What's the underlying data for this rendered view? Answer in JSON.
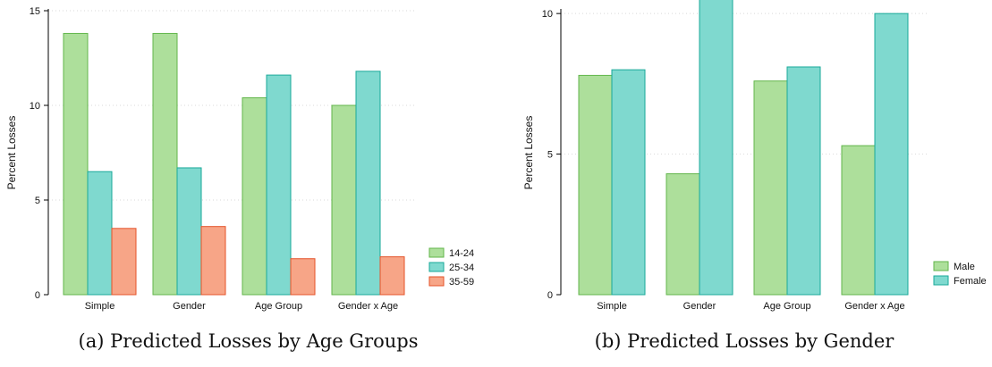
{
  "captions": {
    "a": "(a) Predicted Losses by Age Groups",
    "b": "(b) Predicted Losses by Gender"
  },
  "colors": {
    "green_fill": "#addf9b",
    "green_stroke": "#62b64b",
    "teal_fill": "#7fd9cf",
    "teal_stroke": "#1aa99a",
    "salmon_fill": "#f7a587",
    "salmon_stroke": "#e4532a",
    "grid": "#d9d9d9"
  },
  "chart_data": [
    {
      "type": "bar",
      "title": "",
      "xlabel": "",
      "ylabel": "Percent Losses",
      "ylim": [
        0,
        15
      ],
      "yticks": [
        0,
        5,
        10,
        15
      ],
      "grid": true,
      "legend_position": "bottom-right",
      "categories": [
        "Simple",
        "Gender",
        "Age Group",
        "Gender x Age"
      ],
      "series": [
        {
          "name": "14-24",
          "values": [
            13.8,
            13.8,
            10.4,
            10.0
          ]
        },
        {
          "name": "25-34",
          "values": [
            6.5,
            6.7,
            11.6,
            11.8
          ]
        },
        {
          "name": "35-59",
          "values": [
            3.5,
            3.6,
            1.9,
            2.0
          ]
        }
      ]
    },
    {
      "type": "bar",
      "title": "",
      "xlabel": "",
      "ylabel": "Percent Losses",
      "ylim": [
        0,
        10.1
      ],
      "yticks": [
        0,
        5,
        10
      ],
      "grid": true,
      "legend_position": "bottom-right",
      "categories": [
        "Simple",
        "Gender",
        "Age Group",
        "Gender x Age"
      ],
      "series": [
        {
          "name": "Male",
          "values": [
            7.8,
            4.3,
            7.6,
            5.3
          ]
        },
        {
          "name": "Female",
          "values": [
            8.0,
            11.0,
            8.1,
            10.0
          ]
        }
      ]
    }
  ]
}
